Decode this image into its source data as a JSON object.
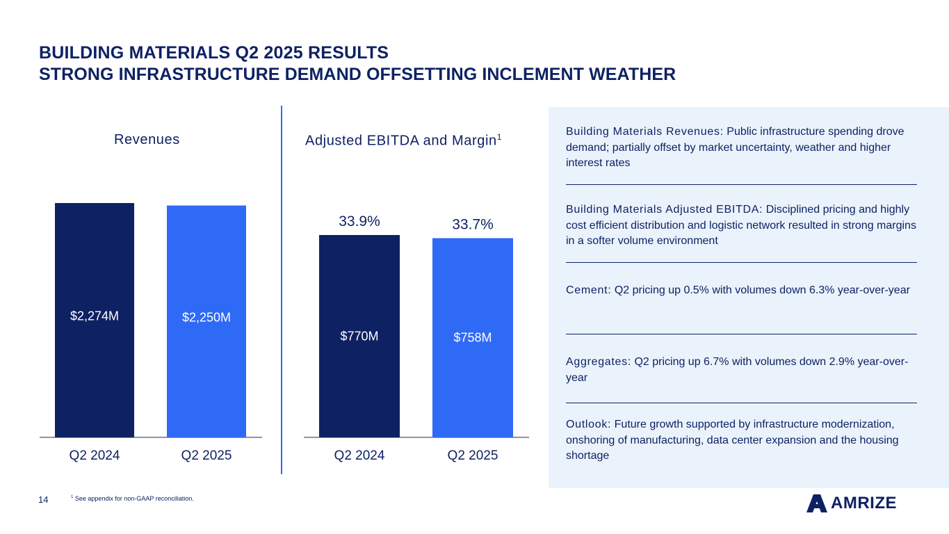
{
  "header": {
    "title": "BUILDING MATERIALS Q2 2025 RESULTS",
    "subtitle": "STRONG INFRASTRUCTURE DEMAND OFFSETTING INCLEMENT WEATHER"
  },
  "chart_data": [
    {
      "type": "bar",
      "title": "Revenues",
      "categories": [
        "Q2 2024",
        "Q2 2025"
      ],
      "values": [
        2274,
        2250
      ],
      "value_labels": [
        "$2,274M",
        "$2,250M"
      ],
      "unit": "$M",
      "colors": [
        "#0e2163",
        "#2e6af5"
      ]
    },
    {
      "type": "bar",
      "title": "Adjusted EBITDA and Margin",
      "title_superscript": "1",
      "categories": [
        "Q2 2024",
        "Q2 2025"
      ],
      "values": [
        770,
        758
      ],
      "value_labels": [
        "$770M",
        "$758M"
      ],
      "margins": [
        "33.9%",
        "33.7%"
      ],
      "unit": "$M",
      "colors": [
        "#0e2163",
        "#2e6af5"
      ]
    }
  ],
  "notes": [
    {
      "label": "Building Materials Revenues:",
      "text": "Public infrastructure spending drove demand; partially offset by market uncertainty, weather and higher interest rates"
    },
    {
      "label": "Building Materials Adjusted EBITDA:",
      "text": "Disciplined pricing and highly cost efficient distribution and logistic network resulted in strong margins in a softer volume environment"
    },
    {
      "label": "Cement:",
      "text": "Q2 pricing up 0.5% with volumes down 6.3% year-over-year"
    },
    {
      "label": "Aggregates:",
      "text": "Q2 pricing up 6.7% with volumes down 2.9% year-over-year"
    },
    {
      "label": "Outlook:",
      "text": "Future growth supported by infrastructure modernization, onshoring of manufacturing, data center expansion and the housing shortage"
    }
  ],
  "footer": {
    "page_number": "14",
    "footnote_marker": "1",
    "footnote": "See appendix for non-GAAP reconciliation.",
    "logo_text": "AMRIZE"
  }
}
